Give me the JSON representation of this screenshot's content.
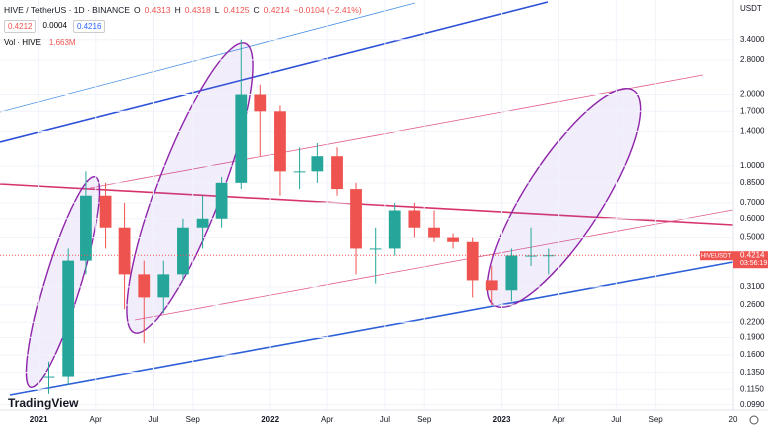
{
  "header": {
    "symbol": "HIVE / TetherUS · 1D · BINANCE",
    "o_label": "O",
    "open": "0.4313",
    "h_label": "H",
    "high": "0.4318",
    "l_label": "L",
    "low": "0.4125",
    "c_label": "C",
    "close": "0.4214",
    "change": "−0.0104 (−2.41%)",
    "bid": "0.4212",
    "spread": "0.0004",
    "ask": "0.4216",
    "vol_label": "Vol · HIVE",
    "vol_value": "1.663M"
  },
  "price_tag": {
    "symbol": "HIVEUSDT",
    "price": "0.4214",
    "countdown": "03:56:19"
  },
  "axis_unit": "USDT",
  "brand": "TradingView",
  "chart_data": {
    "type": "candlestick",
    "log_scale": true,
    "up_color": "#26a69a",
    "down_color": "#ef5350",
    "x": [
      "2021-01",
      "2021-02",
      "2021-03",
      "2021-04",
      "2021-05",
      "2021-06",
      "2021-07",
      "2021-08",
      "2021-09",
      "2021-10",
      "2021-11",
      "2021-12",
      "2022-01",
      "2022-02",
      "2022-03",
      "2022-04",
      "2022-05",
      "2022-06",
      "2022-07",
      "2022-08",
      "2022-09",
      "2022-10",
      "2022-11",
      "2022-12",
      "2023-01",
      "2023-02",
      "2023-03"
    ],
    "open": [
      0.13,
      0.13,
      0.4,
      0.75,
      0.55,
      0.35,
      0.28,
      0.35,
      0.55,
      0.6,
      0.85,
      2.0,
      1.7,
      0.95,
      0.95,
      1.1,
      0.8,
      0.45,
      0.45,
      0.65,
      0.55,
      0.5,
      0.48,
      0.33,
      0.3,
      0.42,
      0.42
    ],
    "high": [
      0.15,
      0.45,
      0.95,
      0.85,
      0.7,
      0.4,
      0.4,
      0.6,
      0.75,
      0.9,
      3.4,
      2.2,
      1.8,
      1.2,
      1.25,
      1.2,
      0.85,
      0.55,
      0.7,
      0.7,
      0.65,
      0.52,
      0.5,
      0.38,
      0.45,
      0.55,
      0.45
    ],
    "low": [
      0.11,
      0.12,
      0.35,
      0.45,
      0.25,
      0.18,
      0.24,
      0.33,
      0.45,
      0.55,
      0.8,
      1.1,
      0.75,
      0.8,
      0.85,
      0.75,
      0.35,
      0.32,
      0.42,
      0.5,
      0.48,
      0.45,
      0.28,
      0.26,
      0.27,
      0.38,
      0.35
    ],
    "close": [
      0.13,
      0.4,
      0.75,
      0.55,
      0.35,
      0.28,
      0.35,
      0.55,
      0.6,
      0.85,
      2.0,
      1.7,
      0.95,
      0.95,
      1.1,
      0.8,
      0.45,
      0.45,
      0.65,
      0.55,
      0.5,
      0.48,
      0.33,
      0.3,
      0.42,
      0.42,
      0.4214
    ],
    "xlim": [
      "2020-11",
      "2024-01"
    ],
    "xticks": [
      {
        "value": "2021-01",
        "label": "2021"
      },
      {
        "value": "2021-04",
        "label": "Apr"
      },
      {
        "value": "2021-07",
        "label": "Jul"
      },
      {
        "value": "2021-09",
        "label": "Sep"
      },
      {
        "value": "2022-01",
        "label": "2022"
      },
      {
        "value": "2022-04",
        "label": "Apr"
      },
      {
        "value": "2022-07",
        "label": "Jul"
      },
      {
        "value": "2022-09",
        "label": "Sep"
      },
      {
        "value": "2023-01",
        "label": "2023"
      },
      {
        "value": "2023-04",
        "label": "Apr"
      },
      {
        "value": "2023-07",
        "label": "Jul"
      },
      {
        "value": "2023-09",
        "label": "Sep"
      },
      {
        "value": "2024-01",
        "label": "20"
      }
    ],
    "ylim": [
      0.094,
      5.0
    ],
    "yticks": [
      {
        "value": 3.4,
        "label": "3.4000"
      },
      {
        "value": 2.8,
        "label": "2.8000"
      },
      {
        "value": 2,
        "label": "2.0000"
      },
      {
        "value": 1.7,
        "label": "1.7000"
      },
      {
        "value": 1.4,
        "label": "1.4000"
      },
      {
        "value": 1,
        "label": "1.0000"
      },
      {
        "value": 0.85,
        "label": "0.8500"
      },
      {
        "value": 0.7,
        "label": "0.7000"
      },
      {
        "value": 0.6,
        "label": "0.6000"
      },
      {
        "value": 0.5,
        "label": "0.5000"
      },
      {
        "value": 0.31,
        "label": "0.3100"
      },
      {
        "value": 0.26,
        "label": "0.2600"
      },
      {
        "value": 0.22,
        "label": "0.2200"
      },
      {
        "value": 0.19,
        "label": "0.1900"
      },
      {
        "value": 0.16,
        "label": "0.1600"
      },
      {
        "value": 0.135,
        "label": "0.1350"
      },
      {
        "value": 0.115,
        "label": "0.1150"
      },
      {
        "value": 0.099,
        "label": "0.0990"
      }
    ]
  }
}
